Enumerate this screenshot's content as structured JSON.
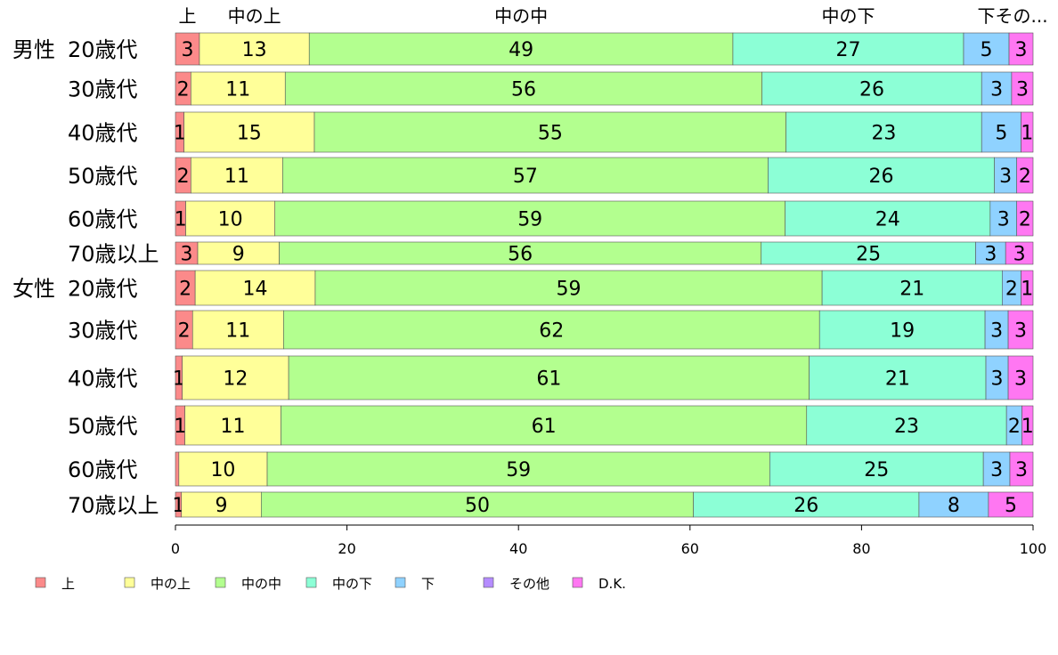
{
  "chart_data": {
    "type": "bar",
    "orientation": "horizontal",
    "stacked": true,
    "xlim": [
      0,
      100
    ],
    "xticks": [
      "0",
      "20",
      "40",
      "60",
      "80",
      "100"
    ],
    "colors": [
      "#fb8a8a",
      "#ffff99",
      "#b3ff8f",
      "#8cffd6",
      "#8fd2ff",
      "#b58cff",
      "#ff77f2"
    ],
    "series": [
      {
        "name": "上"
      },
      {
        "name": "中の上"
      },
      {
        "name": "中の中"
      },
      {
        "name": "中の下"
      },
      {
        "name": "下"
      },
      {
        "name": "その他"
      },
      {
        "name": "D.K."
      }
    ],
    "top_labels": [
      "上",
      "中の上",
      "中の中",
      "中の下",
      "下",
      "その..."
    ],
    "rows": [
      {
        "group": "男性",
        "category": "20歳代",
        "values": [
          2.8,
          12.8,
          49.4,
          26.9,
          5.3,
          0,
          2.8
        ],
        "labels": [
          "3",
          "13",
          "49",
          "27",
          "5",
          "",
          "3"
        ]
      },
      {
        "group": "",
        "category": "30歳代",
        "values": [
          1.8,
          11.0,
          55.6,
          25.6,
          3.5,
          0,
          2.5
        ],
        "labels": [
          "2",
          "11",
          "56",
          "26",
          "3",
          "",
          "3"
        ]
      },
      {
        "group": "",
        "category": "40歳代",
        "values": [
          1.0,
          15.2,
          55.0,
          22.8,
          4.6,
          0,
          1.4
        ],
        "labels": [
          "1",
          "15",
          "55",
          "23",
          "5",
          "",
          "1"
        ]
      },
      {
        "group": "",
        "category": "50歳代",
        "values": [
          1.8,
          10.7,
          56.6,
          26.4,
          2.6,
          0,
          1.9
        ],
        "labels": [
          "2",
          "11",
          "57",
          "26",
          "3",
          "",
          "2"
        ]
      },
      {
        "group": "",
        "category": "60歳代",
        "values": [
          1.2,
          10.4,
          59.5,
          23.9,
          3.1,
          0,
          1.9
        ],
        "labels": [
          "1",
          "10",
          "59",
          "24",
          "3",
          "",
          "2"
        ]
      },
      {
        "group": "",
        "category": "70歳以上",
        "values": [
          2.6,
          9.5,
          56.2,
          25.0,
          3.5,
          0,
          3.2
        ],
        "labels": [
          "3",
          "9",
          "56",
          "25",
          "3",
          "",
          "3"
        ]
      },
      {
        "group": "女性",
        "category": "20歳代",
        "values": [
          2.3,
          14.0,
          59.1,
          21.0,
          2.2,
          0,
          1.4
        ],
        "labels": [
          "2",
          "14",
          "59",
          "21",
          "2",
          "",
          "1"
        ]
      },
      {
        "group": "",
        "category": "30歳代",
        "values": [
          2.0,
          10.6,
          62.5,
          19.3,
          2.7,
          0,
          2.9
        ],
        "labels": [
          "2",
          "11",
          "62",
          "19",
          "3",
          "",
          "3"
        ]
      },
      {
        "group": "",
        "category": "40歳代",
        "values": [
          0.8,
          12.4,
          60.7,
          20.6,
          2.6,
          0,
          2.9
        ],
        "labels": [
          "1",
          "12",
          "61",
          "21",
          "3",
          "",
          "3"
        ]
      },
      {
        "group": "",
        "category": "50歳代",
        "values": [
          1.1,
          11.2,
          61.3,
          23.3,
          1.8,
          0,
          1.3
        ],
        "labels": [
          "1",
          "11",
          "61",
          "23",
          "2",
          "",
          "1"
        ]
      },
      {
        "group": "",
        "category": "60歳代",
        "values": [
          0.4,
          10.3,
          58.6,
          24.9,
          3.1,
          0,
          2.7
        ],
        "labels": [
          "",
          "10",
          "59",
          "25",
          "3",
          "",
          "3"
        ]
      },
      {
        "group": "",
        "category": "70歳以上",
        "values": [
          0.7,
          9.3,
          50.4,
          26.3,
          8.1,
          0,
          5.2
        ],
        "labels": [
          "1",
          "9",
          "50",
          "26",
          "8",
          "",
          "5"
        ]
      }
    ]
  }
}
